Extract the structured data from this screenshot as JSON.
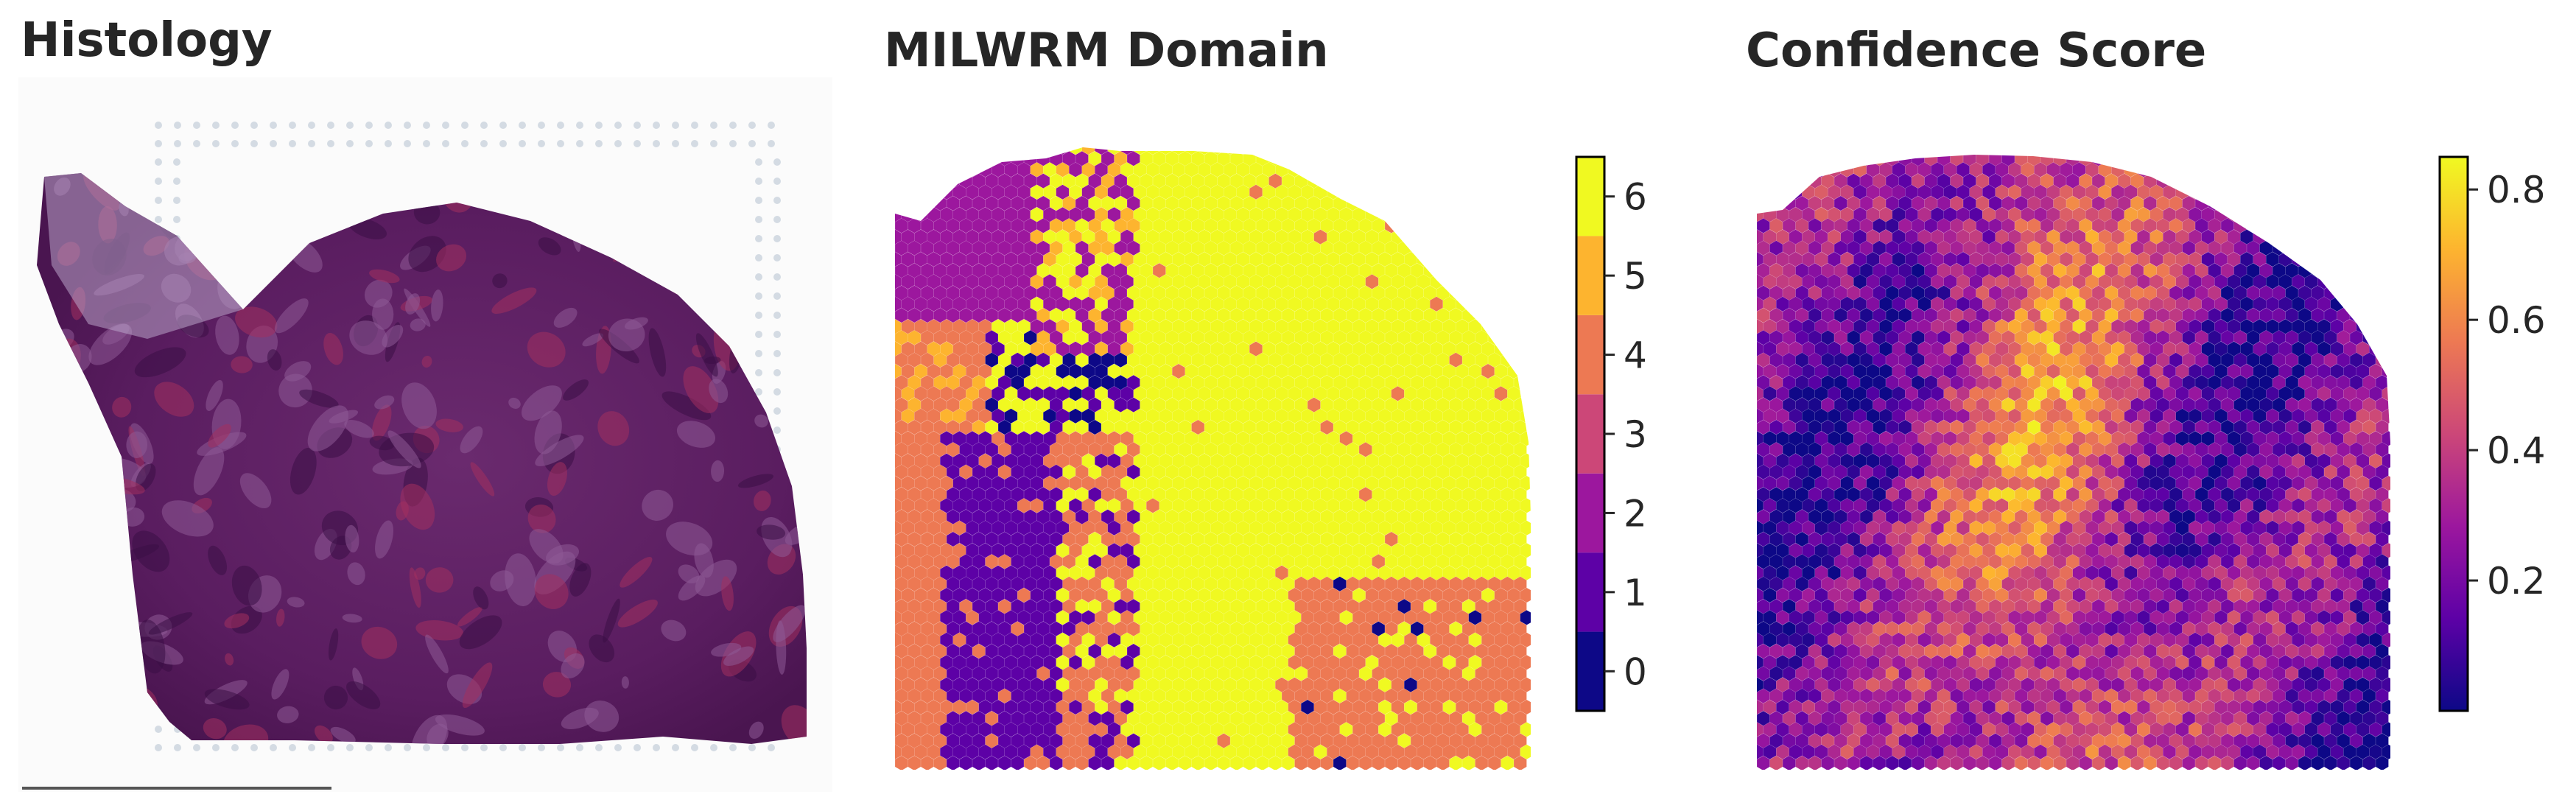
{
  "panels": {
    "histology": {
      "title": "Histology"
    },
    "domain": {
      "title": "MILWRM Domain"
    },
    "confidence": {
      "title": "Confidence Score"
    }
  },
  "chart_data": [
    {
      "type": "image",
      "title": "Histology"
    },
    {
      "type": "heatmap",
      "title": "MILWRM Domain",
      "colorbar": {
        "kind": "discrete",
        "labels": [
          "0",
          "1",
          "2",
          "3",
          "4",
          "5",
          "6"
        ],
        "values": [
          0,
          1,
          2,
          3,
          4,
          5,
          6
        ],
        "colors": [
          "#0d0887",
          "#5d01a6",
          "#9c179e",
          "#cc4778",
          "#ed7953",
          "#fdb42f",
          "#f0f921"
        ]
      },
      "regions": [
        {
          "domain": 6,
          "area": "large right/center region"
        },
        {
          "domain": 4,
          "area": "lower-right and left-middle"
        },
        {
          "domain": 2,
          "area": "upper-left"
        },
        {
          "domain": 1,
          "area": "left-middle/lower"
        },
        {
          "domain": 5,
          "area": "scattered upper-left"
        },
        {
          "domain": 0,
          "area": "scattered small patches"
        },
        {
          "domain": 3,
          "area": "scattered"
        }
      ]
    },
    {
      "type": "heatmap",
      "title": "Confidence Score",
      "colorbar": {
        "kind": "continuous",
        "range": [
          0.0,
          0.85
        ],
        "ticks": [
          0.2,
          0.4,
          0.6,
          0.8
        ],
        "tick_labels": [
          "0.2",
          "0.4",
          "0.6",
          "0.8"
        ],
        "colormap": "plasma",
        "colors": [
          "#0d0887",
          "#5d01a6",
          "#9c179e",
          "#cc4778",
          "#ed7953",
          "#fdb42f",
          "#f0f921"
        ]
      }
    }
  ]
}
